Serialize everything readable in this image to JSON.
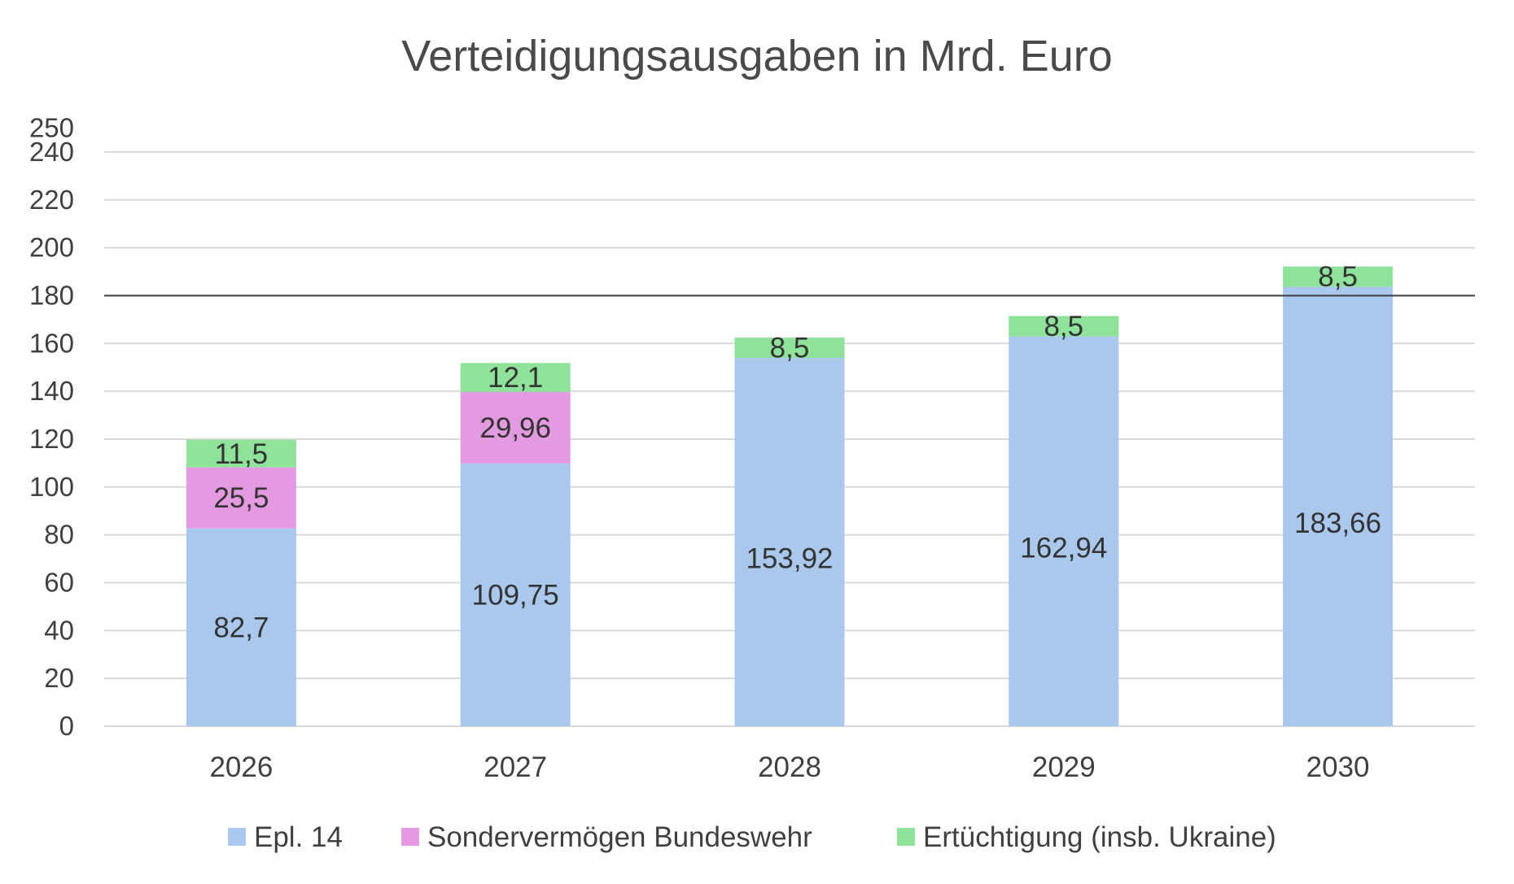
{
  "chart_data": {
    "type": "bar",
    "stacked": true,
    "title": "Verteidigungsausgaben in Mrd. Euro",
    "categories": [
      "2026",
      "2027",
      "2028",
      "2029",
      "2030"
    ],
    "series": [
      {
        "name": "Epl. 14",
        "color": "#a9c8ec",
        "values": [
          82.7,
          109.75,
          153.92,
          162.94,
          183.66
        ],
        "labels": [
          "82,7",
          "109,75",
          "153,92",
          "162,94",
          "183,66"
        ]
      },
      {
        "name": "Sondervermögen Bundeswehr",
        "color": "#e49ae0",
        "values": [
          25.5,
          29.96,
          null,
          null,
          null
        ],
        "labels": [
          "25,5",
          "29,96",
          "",
          "",
          ""
        ]
      },
      {
        "name": "Ertüchtigung (insb. Ukraine)",
        "color": "#8ee29a",
        "values": [
          11.5,
          12.1,
          8.5,
          8.5,
          8.5
        ],
        "labels": [
          "11,5",
          "12,1",
          "8,5",
          "8,5",
          "8,5"
        ]
      }
    ],
    "y_ticks": [
      "0",
      "20",
      "40",
      "60",
      "80",
      "100",
      "120",
      "140",
      "160",
      "180",
      "200",
      "220",
      "240",
      "250"
    ],
    "ylim": [
      0,
      250
    ],
    "reference_line": 180,
    "grid": true,
    "legend_position": "bottom",
    "xlabel": "",
    "ylabel": ""
  }
}
